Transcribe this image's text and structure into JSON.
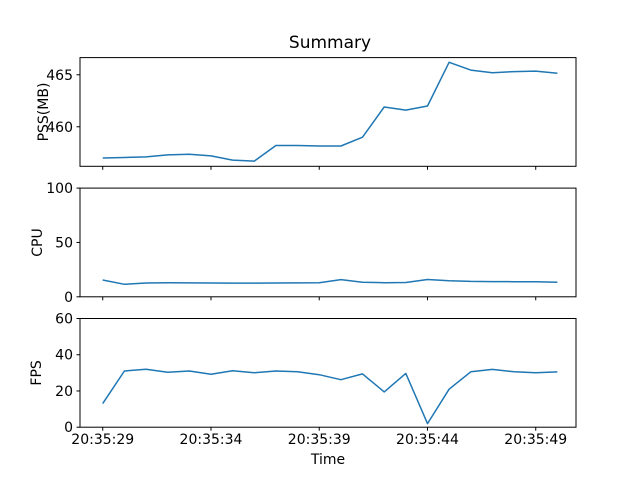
{
  "chart_data": {
    "type": "line",
    "title": "Summary",
    "xlabel": "Time",
    "line_color": "#1f77b4",
    "grid": false,
    "legend": "none",
    "x_times": [
      "20:35:29",
      "20:35:30",
      "20:35:31",
      "20:35:32",
      "20:35:33",
      "20:35:34",
      "20:35:35",
      "20:35:36",
      "20:35:37",
      "20:35:38",
      "20:35:39",
      "20:35:40",
      "20:35:41",
      "20:35:42",
      "20:35:43",
      "20:35:44",
      "20:35:45",
      "20:35:46",
      "20:35:47",
      "20:35:48",
      "20:35:49",
      "20:35:50"
    ],
    "x_seconds": [
      29,
      30,
      31,
      32,
      33,
      34,
      35,
      36,
      37,
      38,
      39,
      40,
      41,
      42,
      43,
      44,
      45,
      46,
      47,
      48,
      49,
      50
    ],
    "x_tick_seconds": [
      29,
      34,
      39,
      44,
      49
    ],
    "x_tick_labels": [
      "20:35:29",
      "20:35:34",
      "20:35:39",
      "20:35:44",
      "20:35:49"
    ],
    "xlim_seconds": [
      27.95,
      50.86
    ],
    "series": [
      {
        "name": "PSS(MB)",
        "ylabel": "PSS(MB)",
        "ylim": [
          456.2,
          466.65
        ],
        "yticks": [
          460,
          465
        ],
        "values": [
          457.0,
          457.05,
          457.1,
          457.3,
          457.35,
          457.2,
          456.8,
          456.7,
          458.2,
          458.2,
          458.15,
          458.15,
          459.0,
          461.9,
          461.6,
          462.0,
          466.2,
          465.45,
          465.2,
          465.3,
          465.35,
          465.15
        ]
      },
      {
        "name": "CPU",
        "ylabel": "CPU",
        "ylim": [
          0,
          100
        ],
        "yticks": [
          0,
          50,
          100
        ],
        "values": [
          15.5,
          11.5,
          12.7,
          12.9,
          12.8,
          12.7,
          12.6,
          12.6,
          12.7,
          12.8,
          13.0,
          15.8,
          13.3,
          13.0,
          13.2,
          15.9,
          14.8,
          14.2,
          14.0,
          13.9,
          13.8,
          13.3
        ]
      },
      {
        "name": "FPS",
        "ylabel": "FPS",
        "ylim": [
          0,
          60
        ],
        "yticks": [
          0,
          20,
          40,
          60
        ],
        "values": [
          13,
          31,
          32,
          30.3,
          31,
          29.2,
          31.2,
          30.1,
          31,
          30.6,
          29,
          26.2,
          29.4,
          19.5,
          29.7,
          2,
          21,
          30.6,
          31.9,
          30.6,
          30.1,
          30.5
        ]
      }
    ]
  }
}
